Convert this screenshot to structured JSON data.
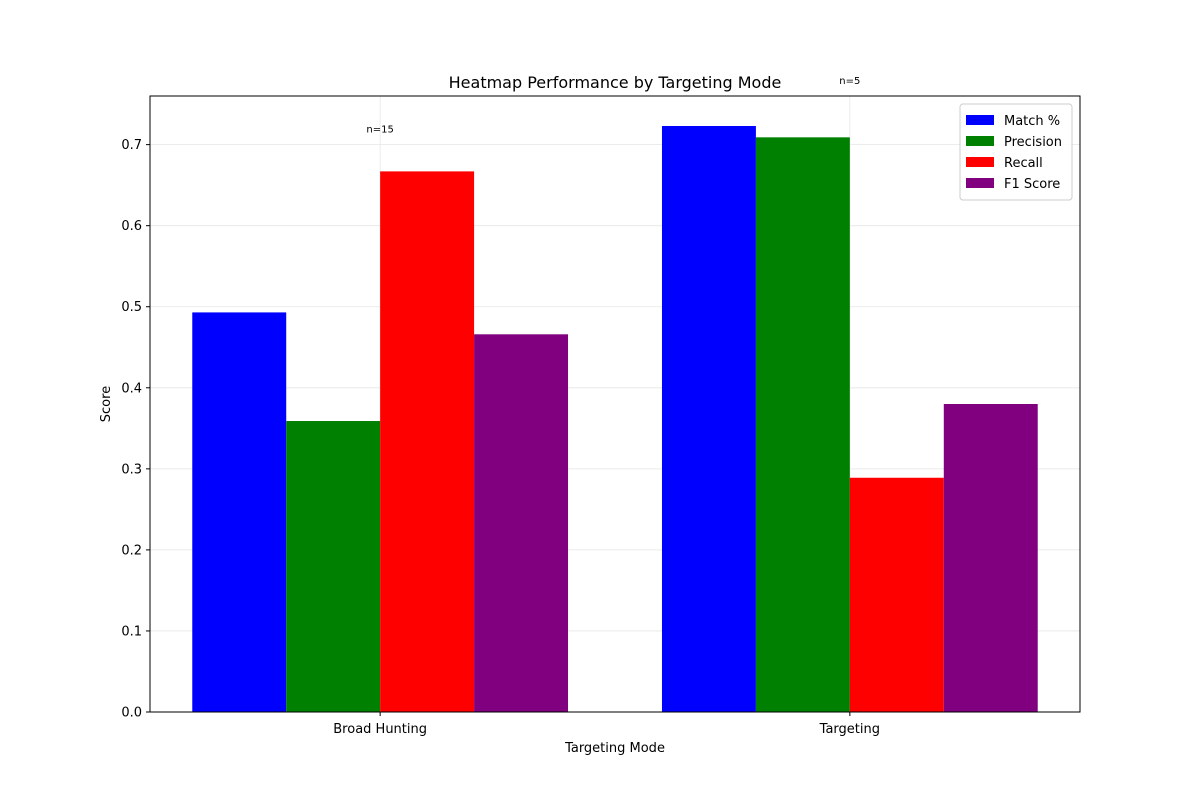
{
  "chart_data": {
    "type": "bar",
    "title": "Heatmap Performance by Targeting Mode",
    "xlabel": "Targeting Mode",
    "ylabel": "Score",
    "categories": [
      "Broad Hunting",
      "Targeting"
    ],
    "series": [
      {
        "name": "Match %",
        "color": "#0000ff",
        "values": [
          0.493,
          0.723
        ]
      },
      {
        "name": "Precision",
        "color": "#008000",
        "values": [
          0.359,
          0.709
        ]
      },
      {
        "name": "Recall",
        "color": "#ff0000",
        "values": [
          0.667,
          0.289
        ]
      },
      {
        "name": "F1 Score",
        "color": "#800080",
        "values": [
          0.466,
          0.38
        ]
      }
    ],
    "annotations": [
      {
        "text": "n=15",
        "category": "Broad Hunting",
        "y": 0.72
      },
      {
        "text": "n=5",
        "category": "Targeting",
        "y": 0.78
      }
    ],
    "ylim": [
      0,
      0.76
    ],
    "yticks": [
      "0.0",
      "0.1",
      "0.2",
      "0.3",
      "0.4",
      "0.5",
      "0.6",
      "0.7"
    ],
    "grid": true,
    "legend_position": "top-right"
  }
}
